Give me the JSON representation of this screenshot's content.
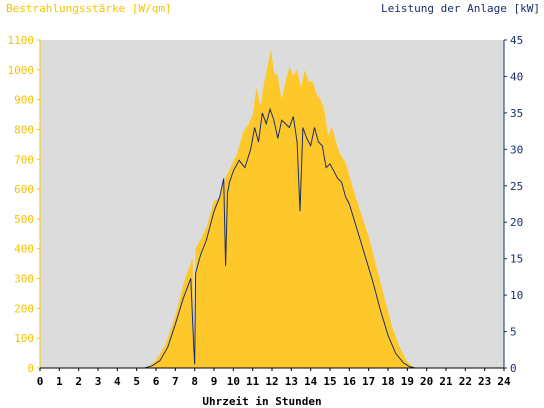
{
  "chart_data": {
    "type": "area",
    "ylabel_left": "Bestrahlungsstärke [W/qm]",
    "ylabel_right": "Leistung der Anlage [kW]",
    "xlabel": "Uhrzeit in Stunden",
    "xlim": [
      0,
      24
    ],
    "ylim_left": [
      0,
      1100
    ],
    "ylim_right": [
      0,
      45
    ],
    "x_ticks": [
      "0",
      "1",
      "2",
      "3",
      "4",
      "5",
      "6",
      "7",
      "8",
      "9",
      "10",
      "11",
      "12",
      "13",
      "14",
      "15",
      "16",
      "17",
      "18",
      "19",
      "20",
      "21",
      "22",
      "23",
      "24"
    ],
    "y_left_ticks": [
      "0",
      "100",
      "200",
      "300",
      "400",
      "500",
      "600",
      "700",
      "800",
      "900",
      "1000",
      "1100"
    ],
    "y_right_ticks": [
      "0",
      "5",
      "10",
      "15",
      "20",
      "25",
      "30",
      "35",
      "40",
      "45"
    ],
    "grid": false,
    "background": "#dcdcdc",
    "colors": {
      "irradiance": "#ffc82a",
      "power": "#1a2e6b",
      "left_axis": "#f5c400",
      "right_axis": "#1a2e6b"
    },
    "series": [
      {
        "name": "Bestrahlungsstärke [W/qm]",
        "axis": "left",
        "x": [
          0,
          5.3,
          5.6,
          6.0,
          6.5,
          7.0,
          7.5,
          7.9,
          8.0,
          8.05,
          8.3,
          8.6,
          9.0,
          9.3,
          9.6,
          9.9,
          10.2,
          10.5,
          10.8,
          11.0,
          11.2,
          11.4,
          11.6,
          11.8,
          11.95,
          12.1,
          12.3,
          12.5,
          12.7,
          12.9,
          13.1,
          13.3,
          13.5,
          13.7,
          13.9,
          14.1,
          14.3,
          14.5,
          14.7,
          14.9,
          15.1,
          15.3,
          15.5,
          15.8,
          16.2,
          16.6,
          17.0,
          17.4,
          17.8,
          18.2,
          18.6,
          19.0,
          19.3,
          19.6,
          24
        ],
        "values": [
          0,
          0,
          5,
          25,
          80,
          175,
          300,
          370,
          10,
          400,
          430,
          470,
          560,
          570,
          640,
          680,
          720,
          790,
          820,
          850,
          940,
          880,
          960,
          1020,
          1070,
          990,
          980,
          900,
          960,
          1010,
          980,
          1000,
          940,
          1000,
          960,
          960,
          920,
          900,
          870,
          780,
          810,
          760,
          720,
          690,
          600,
          520,
          440,
          340,
          240,
          140,
          70,
          20,
          5,
          0,
          0
        ]
      },
      {
        "name": "Leistung der Anlage [kW]",
        "axis": "right",
        "x": [
          0,
          5.4,
          5.8,
          6.2,
          6.6,
          7.0,
          7.4,
          7.8,
          7.95,
          8.0,
          8.05,
          8.3,
          8.6,
          9.0,
          9.3,
          9.5,
          9.6,
          9.7,
          9.8,
          10.0,
          10.3,
          10.6,
          10.9,
          11.1,
          11.3,
          11.5,
          11.7,
          11.9,
          12.1,
          12.3,
          12.5,
          12.7,
          12.9,
          13.1,
          13.3,
          13.45,
          13.6,
          13.8,
          14.0,
          14.2,
          14.4,
          14.6,
          14.8,
          15.0,
          15.2,
          15.4,
          15.6,
          15.8,
          16.0,
          16.4,
          16.8,
          17.2,
          17.6,
          18.0,
          18.4,
          18.8,
          19.1,
          19.4,
          24
        ],
        "values": [
          0,
          0,
          0.3,
          1.0,
          2.8,
          6.0,
          9.5,
          12.3,
          3.0,
          0.5,
          13.0,
          15.5,
          17.5,
          21.5,
          23.5,
          26.0,
          14.0,
          24.0,
          25.5,
          27.0,
          28.5,
          27.5,
          30.0,
          33.0,
          31.0,
          35.0,
          33.5,
          35.5,
          34.0,
          31.5,
          34.0,
          33.5,
          33.0,
          34.5,
          31.0,
          21.5,
          33.0,
          31.5,
          30.5,
          33.0,
          31.0,
          30.5,
          27.5,
          28.0,
          27.0,
          26.0,
          25.5,
          23.5,
          22.5,
          19.0,
          15.5,
          12.0,
          8.0,
          4.5,
          2.0,
          0.7,
          0.2,
          0,
          0
        ]
      }
    ]
  }
}
